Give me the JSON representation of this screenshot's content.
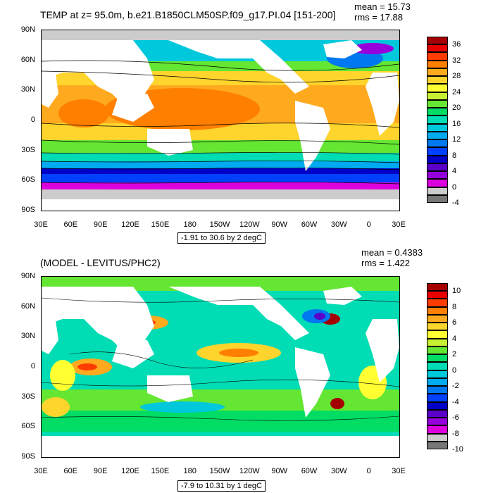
{
  "panels": [
    {
      "title": "TEMP at z=  95.0m, b.e21.B1850CLM50SP.f09_g17.PI.04 [151-200]",
      "mean": "mean = 15.73",
      "rms": "rms = 17.88",
      "range_text": "-1.91 to 30.6 by 2 degC",
      "lat_ticks": [
        "90N",
        "60N",
        "30N",
        "0",
        "30S",
        "60S",
        "90S"
      ],
      "lon_ticks": [
        "30E",
        "60E",
        "90E",
        "120E",
        "150E",
        "180",
        "150W",
        "120W",
        "90W",
        "60W",
        "30W",
        "0",
        "30E"
      ],
      "colorbar_labels": [
        "36",
        "32",
        "28",
        "24",
        "20",
        "16",
        "12",
        "8",
        "4",
        "0",
        "-4"
      ],
      "colorbar_colors": [
        "#a50000",
        "#e80000",
        "#ff3c00",
        "#ff7f00",
        "#ffaa1e",
        "#ffd42d",
        "#ffff32",
        "#c8f032",
        "#64e632",
        "#00dc64",
        "#00dcb4",
        "#00c8dc",
        "#00aaf0",
        "#0078f0",
        "#0040ff",
        "#0000c8",
        "#5a00c8",
        "#9600dc",
        "#dc00dc",
        "#cccccc",
        "#777777"
      ]
    },
    {
      "title": "(MODEL - LEVITUS/PHC2)",
      "mean": "mean = 0.4383",
      "rms": "rms = 1.422",
      "range_text": "-7.9 to 10.31 by 1 degC",
      "lat_ticks": [
        "90N",
        "60N",
        "30N",
        "0",
        "30S",
        "60S",
        "90S"
      ],
      "lon_ticks": [
        "30E",
        "60E",
        "90E",
        "120E",
        "150E",
        "180",
        "150W",
        "120W",
        "90W",
        "60W",
        "30W",
        "0",
        "30E"
      ],
      "colorbar_labels": [
        "10",
        "8",
        "6",
        "4",
        "2",
        "0",
        "-2",
        "-4",
        "-6",
        "-8",
        "-10"
      ],
      "colorbar_colors": [
        "#a50000",
        "#e80000",
        "#ff3c00",
        "#ff7f00",
        "#ffaa1e",
        "#ffd42d",
        "#ffff32",
        "#c8f032",
        "#64e632",
        "#00dc64",
        "#00dcb4",
        "#00c8dc",
        "#00aaf0",
        "#0078f0",
        "#0040ff",
        "#0000c8",
        "#5a00c8",
        "#9600dc",
        "#dc00dc",
        "#cccccc",
        "#777777"
      ]
    }
  ]
}
